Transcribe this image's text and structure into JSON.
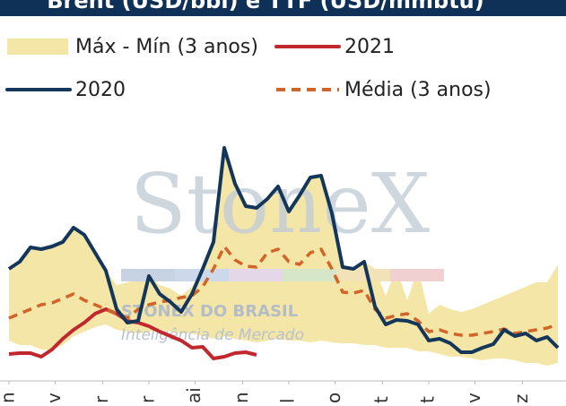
{
  "chart_data": {
    "type": "line",
    "title": "Brent (USD/bbl) e TTF (USD/mmbtu)",
    "watermark": [
      "StoneX",
      "STONEX DO BRASIL",
      "Inteligência de Mercado"
    ],
    "xlim": [
      0,
      51
    ],
    "xticks": [
      {
        "value": 0,
        "label": "n"
      },
      {
        "value": 4.3,
        "label": "v"
      },
      {
        "value": 8.7,
        "label": "r"
      },
      {
        "value": 13,
        "label": "r"
      },
      {
        "value": 17.3,
        "label": "ai"
      },
      {
        "value": 21.7,
        "label": "n"
      },
      {
        "value": 26,
        "label": "l"
      },
      {
        "value": 30.3,
        "label": "o"
      },
      {
        "value": 34.7,
        "label": "t"
      },
      {
        "value": 39,
        "label": "t"
      },
      {
        "value": 43.3,
        "label": "v"
      },
      {
        "value": 47.7,
        "label": "z"
      }
    ],
    "ylim": [
      0,
      300
    ],
    "band": {
      "name": "Máx - Mín (3 anos)",
      "color": "#f3e6a6",
      "max": [
        120,
        128,
        144,
        142,
        145,
        150,
        166,
        158,
        138,
        118,
        102,
        105,
        108,
        112,
        102,
        98,
        90,
        100,
        120,
        150,
        255,
        215,
        190,
        188,
        198,
        212,
        184,
        202,
        222,
        224,
        182,
        122,
        120,
        128,
        120,
        90,
        120,
        85,
        120,
        70,
        80,
        75,
        72,
        75,
        80,
        85,
        90,
        95,
        100,
        105,
        105,
        125
      ],
      "min": [
        40,
        35,
        35,
        30,
        30,
        35,
        45,
        50,
        55,
        58,
        52,
        50,
        48,
        50,
        52,
        50,
        48,
        48,
        45,
        42,
        45,
        42,
        40,
        38,
        40,
        42,
        40,
        40,
        38,
        40,
        38,
        37,
        37,
        35,
        35,
        32,
        32,
        32,
        28,
        28,
        25,
        22,
        22,
        20,
        18,
        20,
        20,
        18,
        15,
        15,
        12,
        15
      ]
    },
    "series": [
      {
        "name": "2021",
        "color": "#c0282d",
        "dash": false,
        "values": [
          25,
          26,
          26,
          22,
          30,
          42,
          52,
          60,
          70,
          75,
          70,
          62,
          60,
          56,
          50,
          45,
          40,
          32,
          33,
          20,
          22,
          26,
          27,
          24,
          null,
          null,
          null,
          null,
          null,
          null,
          null,
          null,
          null,
          null,
          null,
          null,
          null,
          null,
          null,
          null,
          null,
          null,
          null,
          null,
          null,
          null,
          null,
          null,
          null,
          null,
          null,
          null
        ]
      },
      {
        "name": "2020",
        "color": "#14365a",
        "dash": false,
        "values": [
          120,
          128,
          144,
          142,
          145,
          150,
          166,
          158,
          138,
          118,
          75,
          60,
          62,
          112,
          92,
          83,
          72,
          92,
          120,
          150,
          255,
          215,
          190,
          188,
          198,
          212,
          184,
          202,
          222,
          224,
          182,
          122,
          120,
          128,
          78,
          58,
          63,
          62,
          58,
          40,
          42,
          37,
          27,
          27,
          32,
          36,
          52,
          45,
          48,
          40,
          44,
          32
        ]
      },
      {
        "name": "Média (3 anos)",
        "color": "#d2642a",
        "dash": true,
        "values": [
          65,
          70,
          75,
          80,
          82,
          87,
          92,
          85,
          80,
          75,
          70,
          65,
          75,
          80,
          83,
          85,
          88,
          90,
          100,
          120,
          145,
          130,
          123,
          122,
          138,
          142,
          128,
          125,
          138,
          142,
          120,
          94,
          93,
          96,
          75,
          65,
          68,
          70,
          62,
          50,
          52,
          48,
          46,
          46,
          48,
          50,
          53,
          48,
          50,
          52,
          54,
          58
        ]
      }
    ]
  }
}
